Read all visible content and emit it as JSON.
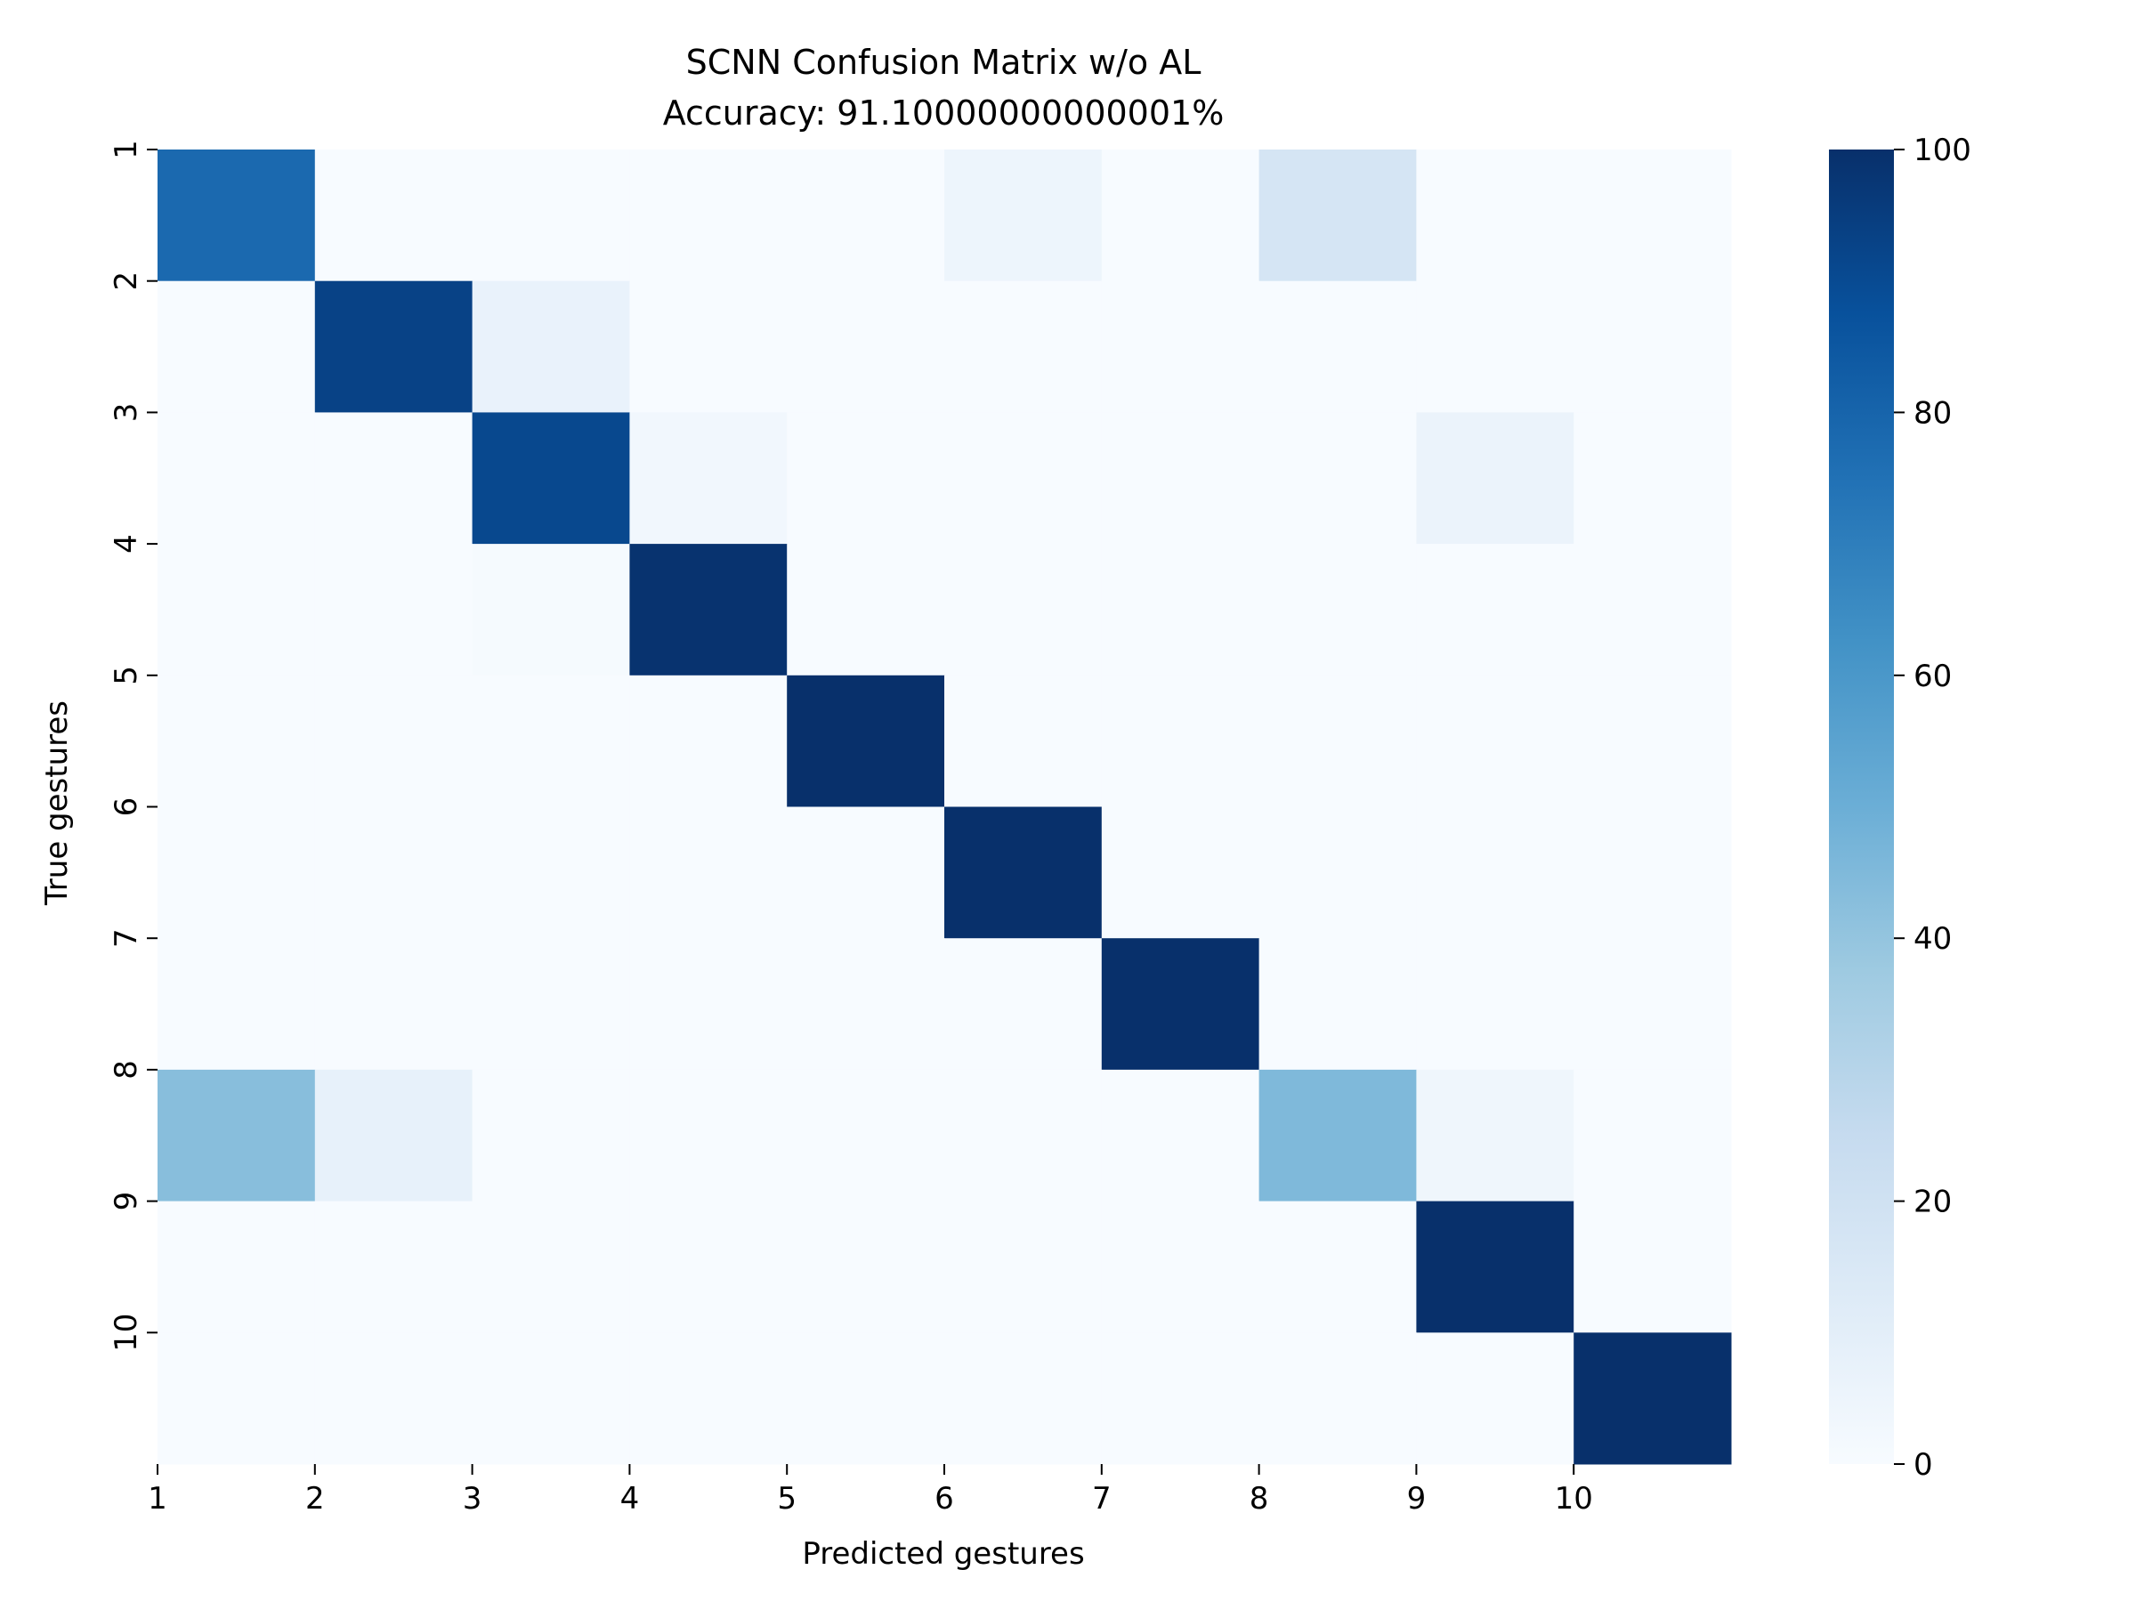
{
  "chart_data": {
    "type": "heatmap",
    "title": "SCNN Confusion Matrix w/o AL",
    "subtitle": "Accuracy: 91.10000000000001%",
    "xlabel": "Predicted gestures",
    "ylabel": "True gestures",
    "x_tick_labels": [
      "1",
      "2",
      "3",
      "4",
      "5",
      "6",
      "7",
      "8",
      "9",
      "10"
    ],
    "y_tick_labels": [
      "1",
      "2",
      "3",
      "4",
      "5",
      "6",
      "7",
      "8",
      "9",
      "10"
    ],
    "colorbar": {
      "range": [
        0,
        100
      ],
      "ticks": [
        "0",
        "20",
        "40",
        "60",
        "80",
        "100"
      ],
      "colormap": "Blues"
    },
    "matrix": [
      [
        78,
        0,
        0,
        0,
        0,
        5,
        0,
        17,
        0,
        0
      ],
      [
        0,
        93,
        7,
        0,
        0,
        0,
        0,
        0,
        0,
        0
      ],
      [
        0,
        0,
        91,
        3,
        0,
        0,
        0,
        0,
        6,
        0
      ],
      [
        0,
        0,
        1,
        99,
        0,
        0,
        0,
        0,
        0,
        0
      ],
      [
        0,
        0,
        0,
        0,
        100,
        0,
        0,
        0,
        0,
        0
      ],
      [
        0,
        0,
        0,
        0,
        0,
        100,
        0,
        0,
        0,
        0
      ],
      [
        0,
        0,
        0,
        0,
        0,
        0,
        100,
        0,
        0,
        0
      ],
      [
        43,
        8,
        0,
        0,
        0,
        0,
        0,
        45,
        4,
        0
      ],
      [
        0,
        0,
        0,
        0,
        0,
        0,
        0,
        0,
        100,
        0
      ],
      [
        0,
        0,
        0,
        0,
        0,
        0,
        0,
        0,
        0,
        100
      ]
    ]
  }
}
